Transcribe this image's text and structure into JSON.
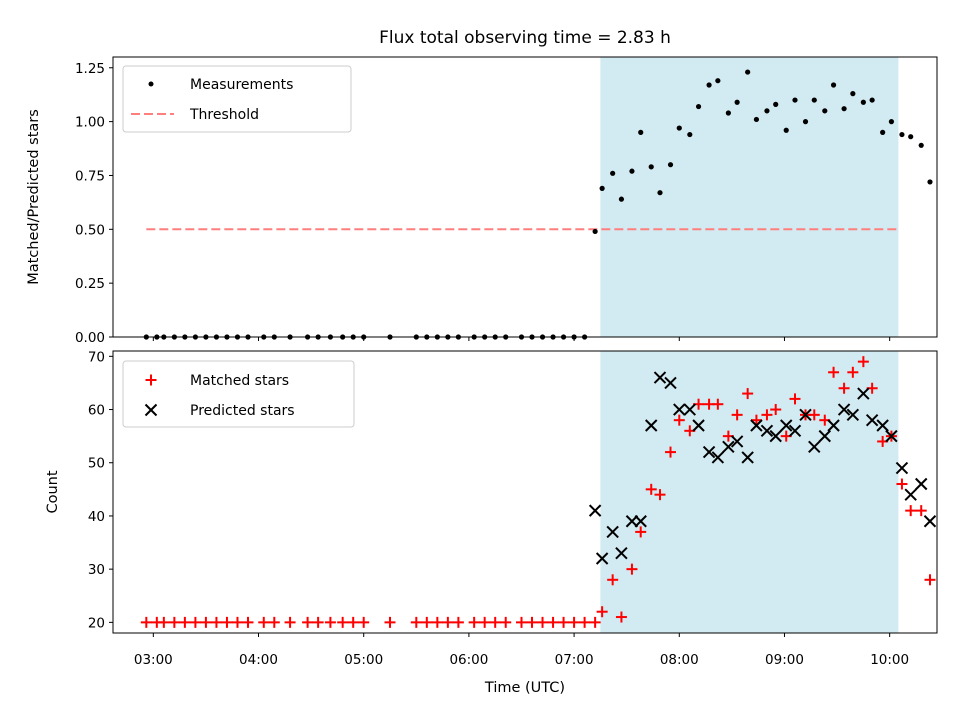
{
  "chart_data": [
    {
      "type": "scatter",
      "title": "Flux total observing time = 2.83 h",
      "ylabel": "Matched/Predicted stars",
      "xlim": [
        "02:37",
        "10:27"
      ],
      "ylim": [
        0,
        1.3
      ],
      "yticks": [
        "0.00",
        "0.25",
        "0.50",
        "0.75",
        "1.00",
        "1.25"
      ],
      "legend_position": "top-left",
      "shaded_interval": [
        "07:15",
        "10:05"
      ],
      "threshold": {
        "name": "Threshold",
        "value": 0.5,
        "x_range": [
          "02:56",
          "10:05"
        ],
        "color": "#ff7f7f"
      },
      "series": [
        {
          "name": "Measurements",
          "color": "#000000",
          "points": [
            [
              "02:56",
              0
            ],
            [
              "03:02",
              0
            ],
            [
              "03:06",
              0
            ],
            [
              "03:12",
              0
            ],
            [
              "03:18",
              0
            ],
            [
              "03:24",
              0
            ],
            [
              "03:30",
              0
            ],
            [
              "03:36",
              0
            ],
            [
              "03:42",
              0
            ],
            [
              "03:48",
              0
            ],
            [
              "03:54",
              0
            ],
            [
              "04:03",
              0
            ],
            [
              "04:09",
              0
            ],
            [
              "04:18",
              0
            ],
            [
              "04:28",
              0
            ],
            [
              "04:34",
              0
            ],
            [
              "04:41",
              0
            ],
            [
              "04:48",
              0
            ],
            [
              "04:54",
              0
            ],
            [
              "05:00",
              0
            ],
            [
              "05:15",
              0
            ],
            [
              "05:30",
              0
            ],
            [
              "05:36",
              0
            ],
            [
              "05:42",
              0
            ],
            [
              "05:48",
              0
            ],
            [
              "05:54",
              0
            ],
            [
              "06:03",
              0
            ],
            [
              "06:09",
              0
            ],
            [
              "06:15",
              0
            ],
            [
              "06:21",
              0
            ],
            [
              "06:30",
              0
            ],
            [
              "06:36",
              0
            ],
            [
              "06:42",
              0
            ],
            [
              "06:48",
              0
            ],
            [
              "06:54",
              0
            ],
            [
              "07:00",
              0
            ],
            [
              "07:06",
              0
            ],
            [
              "07:12",
              0.49
            ],
            [
              "07:16",
              0.69
            ],
            [
              "07:22",
              0.76
            ],
            [
              "07:27",
              0.64
            ],
            [
              "07:33",
              0.77
            ],
            [
              "07:38",
              0.95
            ],
            [
              "07:44",
              0.79
            ],
            [
              "07:49",
              0.67
            ],
            [
              "07:55",
              0.8
            ],
            [
              "08:00",
              0.97
            ],
            [
              "08:06",
              0.94
            ],
            [
              "08:11",
              1.07
            ],
            [
              "08:17",
              1.17
            ],
            [
              "08:22",
              1.19
            ],
            [
              "08:28",
              1.04
            ],
            [
              "08:33",
              1.09
            ],
            [
              "08:39",
              1.23
            ],
            [
              "08:44",
              1.01
            ],
            [
              "08:50",
              1.05
            ],
            [
              "08:55",
              1.08
            ],
            [
              "09:01",
              0.96
            ],
            [
              "09:06",
              1.1
            ],
            [
              "09:12",
              1.0
            ],
            [
              "09:17",
              1.1
            ],
            [
              "09:23",
              1.05
            ],
            [
              "09:28",
              1.17
            ],
            [
              "09:34",
              1.06
            ],
            [
              "09:39",
              1.13
            ],
            [
              "09:45",
              1.09
            ],
            [
              "09:50",
              1.1
            ],
            [
              "09:56",
              0.95
            ],
            [
              "10:01",
              1.0
            ],
            [
              "10:07",
              0.94
            ],
            [
              "10:12",
              0.93
            ],
            [
              "10:18",
              0.89
            ],
            [
              "10:23",
              0.72
            ]
          ]
        }
      ]
    },
    {
      "type": "scatter",
      "xlabel": "Time (UTC)",
      "ylabel": "Count",
      "xlim": [
        "02:37",
        "10:27"
      ],
      "ylim": [
        18,
        71
      ],
      "xticks": [
        "03:00",
        "04:00",
        "05:00",
        "06:00",
        "07:00",
        "08:00",
        "09:00",
        "10:00"
      ],
      "yticks": [
        "20",
        "30",
        "40",
        "50",
        "60",
        "70"
      ],
      "legend_position": "top-left",
      "shaded_interval": [
        "07:15",
        "10:05"
      ],
      "series": [
        {
          "name": "Matched stars",
          "color": "#ff0000",
          "marker": "plus",
          "points": [
            [
              "02:56",
              20
            ],
            [
              "03:02",
              20
            ],
            [
              "03:06",
              20
            ],
            [
              "03:12",
              20
            ],
            [
              "03:18",
              20
            ],
            [
              "03:24",
              20
            ],
            [
              "03:30",
              20
            ],
            [
              "03:36",
              20
            ],
            [
              "03:42",
              20
            ],
            [
              "03:48",
              20
            ],
            [
              "03:54",
              20
            ],
            [
              "04:03",
              20
            ],
            [
              "04:09",
              20
            ],
            [
              "04:18",
              20
            ],
            [
              "04:28",
              20
            ],
            [
              "04:34",
              20
            ],
            [
              "04:41",
              20
            ],
            [
              "04:48",
              20
            ],
            [
              "04:54",
              20
            ],
            [
              "05:00",
              20
            ],
            [
              "05:15",
              20
            ],
            [
              "05:30",
              20
            ],
            [
              "05:36",
              20
            ],
            [
              "05:42",
              20
            ],
            [
              "05:48",
              20
            ],
            [
              "05:54",
              20
            ],
            [
              "06:03",
              20
            ],
            [
              "06:09",
              20
            ],
            [
              "06:15",
              20
            ],
            [
              "06:21",
              20
            ],
            [
              "06:30",
              20
            ],
            [
              "06:36",
              20
            ],
            [
              "06:42",
              20
            ],
            [
              "06:48",
              20
            ],
            [
              "06:54",
              20
            ],
            [
              "07:00",
              20
            ],
            [
              "07:06",
              20
            ],
            [
              "07:12",
              20
            ],
            [
              "07:16",
              22
            ],
            [
              "07:22",
              28
            ],
            [
              "07:27",
              21
            ],
            [
              "07:33",
              30
            ],
            [
              "07:38",
              37
            ],
            [
              "07:44",
              45
            ],
            [
              "07:49",
              44
            ],
            [
              "07:55",
              52
            ],
            [
              "08:00",
              58
            ],
            [
              "08:06",
              56
            ],
            [
              "08:11",
              61
            ],
            [
              "08:17",
              61
            ],
            [
              "08:22",
              61
            ],
            [
              "08:28",
              55
            ],
            [
              "08:33",
              59
            ],
            [
              "08:39",
              63
            ],
            [
              "08:44",
              58
            ],
            [
              "08:50",
              59
            ],
            [
              "08:55",
              60
            ],
            [
              "09:01",
              55
            ],
            [
              "09:06",
              62
            ],
            [
              "09:12",
              59
            ],
            [
              "09:17",
              59
            ],
            [
              "09:23",
              58
            ],
            [
              "09:28",
              67
            ],
            [
              "09:34",
              64
            ],
            [
              "09:39",
              67
            ],
            [
              "09:45",
              69
            ],
            [
              "09:50",
              64
            ],
            [
              "09:56",
              54
            ],
            [
              "10:01",
              55
            ],
            [
              "10:07",
              46
            ],
            [
              "10:12",
              41
            ],
            [
              "10:18",
              41
            ],
            [
              "10:23",
              28
            ]
          ]
        },
        {
          "name": "Predicted stars",
          "color": "#000000",
          "marker": "x",
          "points": [
            [
              "07:12",
              41
            ],
            [
              "07:16",
              32
            ],
            [
              "07:22",
              37
            ],
            [
              "07:27",
              33
            ],
            [
              "07:33",
              39
            ],
            [
              "07:38",
              39
            ],
            [
              "07:44",
              57
            ],
            [
              "07:49",
              66
            ],
            [
              "07:55",
              65
            ],
            [
              "08:00",
              60
            ],
            [
              "08:06",
              60
            ],
            [
              "08:11",
              57
            ],
            [
              "08:17",
              52
            ],
            [
              "08:22",
              51
            ],
            [
              "08:28",
              53
            ],
            [
              "08:33",
              54
            ],
            [
              "08:39",
              51
            ],
            [
              "08:44",
              57
            ],
            [
              "08:50",
              56
            ],
            [
              "08:55",
              55
            ],
            [
              "09:01",
              57
            ],
            [
              "09:06",
              56
            ],
            [
              "09:12",
              59
            ],
            [
              "09:17",
              53
            ],
            [
              "09:23",
              55
            ],
            [
              "09:28",
              57
            ],
            [
              "09:34",
              60
            ],
            [
              "09:39",
              59
            ],
            [
              "09:45",
              63
            ],
            [
              "09:50",
              58
            ],
            [
              "09:56",
              57
            ],
            [
              "10:01",
              55
            ],
            [
              "10:07",
              49
            ],
            [
              "10:12",
              44
            ],
            [
              "10:18",
              46
            ],
            [
              "10:23",
              39
            ]
          ]
        }
      ]
    }
  ]
}
